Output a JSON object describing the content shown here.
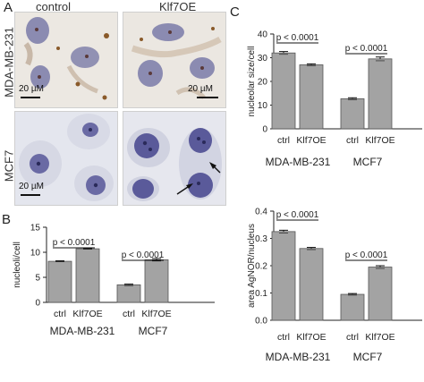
{
  "panels": {
    "A": {
      "letter": "A",
      "col_labels": [
        "control",
        "Klf7OE"
      ],
      "row_labels": [
        "MDA-MB-231",
        "MCF7"
      ],
      "scale_bar_label": "20 µM"
    },
    "B": {
      "letter": "B"
    },
    "C": {
      "letter": "C"
    }
  },
  "colors": {
    "bar_fill": "#a3a3a3",
    "bar_stroke": "#555555",
    "axis": "#222222",
    "stain_blue": "#5a5a9a",
    "stain_brown": "#8a5a2a"
  },
  "chart_data": [
    {
      "id": "nucleoli",
      "type": "bar",
      "categories": [
        "ctrl",
        "Klf7OE",
        "ctrl",
        "Klf7OE"
      ],
      "groups": [
        "MDA-MB-231",
        "MCF7"
      ],
      "values": [
        8.2,
        10.7,
        3.5,
        8.5
      ],
      "errors": [
        0.1,
        0.1,
        0.15,
        0.25
      ],
      "ylabel": "nucleoli/cell",
      "ylim": [
        0,
        15
      ],
      "yticks": [
        "0",
        "5",
        "10",
        "15"
      ],
      "annotations": [
        "p < 0.0001",
        "p < 0.0001"
      ]
    },
    {
      "id": "nucleolar-size",
      "type": "bar",
      "categories": [
        "ctrl",
        "Klf7OE",
        "ctrl",
        "Klf7OE"
      ],
      "groups": [
        "MDA-MB-231",
        "MCF7"
      ],
      "values": [
        32,
        27,
        12.7,
        29.5
      ],
      "errors": [
        0.6,
        0.4,
        0.4,
        0.8
      ],
      "ylabel": "nucleolar size/cell",
      "ylim": [
        0,
        40
      ],
      "yticks": [
        "0",
        "10",
        "20",
        "30",
        "40"
      ],
      "annotations": [
        "p < 0.0001",
        "p < 0.0001"
      ]
    },
    {
      "id": "agnor-area",
      "type": "bar",
      "categories": [
        "ctrl",
        "Klf7OE",
        "ctrl",
        "Klf7OE"
      ],
      "groups": [
        "MDA-MB-231",
        "MCF7"
      ],
      "values": [
        0.325,
        0.263,
        0.095,
        0.195
      ],
      "errors": [
        0.005,
        0.004,
        0.003,
        0.005
      ],
      "ylabel": "area AgNOR/nucleus",
      "ylim": [
        0,
        0.4
      ],
      "yticks": [
        "0.0",
        "0.1",
        "0.2",
        "0.3",
        "0.4"
      ],
      "annotations": [
        "p < 0.0001",
        "p < 0.0001"
      ]
    }
  ]
}
